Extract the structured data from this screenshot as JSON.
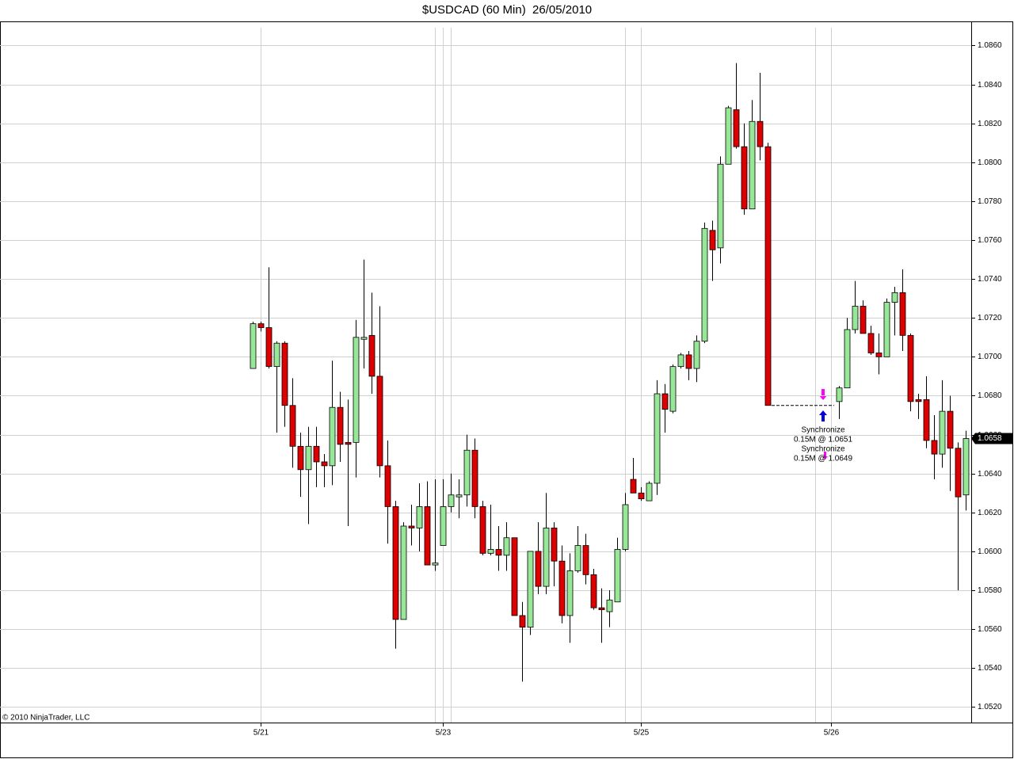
{
  "chart_data": {
    "type": "candlestick",
    "title": "$USDCAD (60 Min)  26/05/2010",
    "copyright": "© 2010 NinjaTrader, LLC",
    "categories": [
      null,
      "5/21",
      null,
      null,
      null,
      null,
      null,
      null,
      null,
      null,
      null,
      null,
      null,
      null,
      null,
      null,
      null,
      null,
      null,
      null,
      null,
      null,
      null,
      null,
      "5/23",
      null,
      null,
      null,
      null,
      null,
      null,
      null,
      null,
      null,
      null,
      null,
      null,
      null,
      null,
      null,
      null,
      null,
      null,
      null,
      null,
      null,
      null,
      null,
      null,
      "5/25",
      null,
      null,
      null,
      null,
      null,
      null,
      null,
      null,
      null,
      null,
      null,
      null,
      null,
      null,
      null,
      null,
      null,
      null,
      null,
      null,
      null,
      null,
      null,
      "5/26",
      null,
      null,
      null,
      null,
      null,
      null,
      null,
      null,
      null,
      null,
      null,
      null,
      null,
      null,
      null,
      null,
      null
    ],
    "open": [
      1.0694,
      1.0717,
      1.0715,
      1.0695,
      1.0707,
      1.0675,
      1.0654,
      1.0642,
      1.0654,
      1.0646,
      1.0644,
      1.0674,
      1.0656,
      1.0656,
      1.0709,
      1.0711,
      1.069,
      1.0644,
      1.0623,
      1.0565,
      1.0613,
      1.0612,
      1.0623,
      1.0593,
      1.0603,
      1.0623,
      1.0628,
      1.0629,
      1.0652,
      1.0623,
      1.0599,
      1.0601,
      1.0598,
      1.0607,
      1.0567,
      1.0561,
      1.06,
      1.0582,
      1.0612,
      1.0595,
      1.0567,
      1.059,
      1.0603,
      1.0588,
      1.0571,
      1.0569,
      1.0574,
      1.0601,
      1.0637,
      1.063,
      1.0626,
      1.0635,
      1.0681,
      1.0672,
      1.0695,
      1.0701,
      1.0694,
      1.0708,
      1.0765,
      1.0756,
      1.0799,
      1.0827,
      1.0808,
      1.0776,
      1.0821,
      1.0808,
      null,
      null,
      null,
      null,
      null,
      null,
      null,
      null,
      1.0677,
      1.0684,
      1.0714,
      1.0726,
      1.0712,
      1.0702,
      1.07,
      1.0728,
      1.0733,
      1.0711,
      1.0678,
      1.0678,
      1.0657,
      1.065,
      1.0672,
      1.0653,
      1.0629
    ],
    "high": [
      1.0718,
      1.0718,
      1.0746,
      1.0708,
      1.0708,
      1.0689,
      1.0661,
      1.0664,
      1.0664,
      1.065,
      1.0698,
      1.0682,
      1.0678,
      1.0719,
      1.075,
      1.0733,
      1.0726,
      1.0657,
      1.0626,
      1.0615,
      1.0624,
      1.0635,
      1.0636,
      1.0637,
      1.0637,
      1.064,
      1.0637,
      1.066,
      1.0658,
      1.0626,
      1.0624,
      1.0613,
      1.0615,
      1.0607,
      1.0574,
      1.06,
      1.0615,
      1.063,
      1.0615,
      1.0603,
      1.0599,
      1.0613,
      1.0609,
      1.0591,
      1.0581,
      1.058,
      1.0607,
      1.063,
      1.0648,
      1.0633,
      1.0636,
      1.0688,
      1.0686,
      1.0696,
      1.0702,
      1.0703,
      1.0711,
      1.0769,
      1.077,
      1.0803,
      1.0829,
      1.0851,
      1.082,
      1.0832,
      1.0846,
      1.081,
      null,
      null,
      null,
      null,
      null,
      null,
      null,
      null,
      1.0685,
      1.072,
      1.0739,
      1.0729,
      1.0716,
      1.0712,
      1.073,
      1.0736,
      1.0745,
      1.0712,
      1.0681,
      1.069,
      1.067,
      1.0688,
      1.068,
      1.0656,
      1.0662
    ],
    "low": [
      1.0694,
      1.0713,
      1.0694,
      1.0661,
      1.0664,
      1.0643,
      1.0628,
      1.0614,
      1.0633,
      1.0633,
      1.0634,
      1.0646,
      1.0613,
      1.0638,
      1.0694,
      1.0681,
      1.0638,
      1.0604,
      1.055,
      1.0565,
      1.0603,
      1.06,
      1.0593,
      1.059,
      1.0603,
      1.062,
      1.0617,
      1.0623,
      1.0617,
      1.0598,
      1.0598,
      1.059,
      1.059,
      1.0567,
      1.0533,
      1.0557,
      1.0578,
      1.0578,
      1.0582,
      1.0563,
      1.0553,
      1.0589,
      1.0583,
      1.057,
      1.0553,
      1.0561,
      1.0574,
      1.06,
      1.063,
      1.0626,
      1.0626,
      1.0629,
      1.0661,
      1.0671,
      1.0694,
      1.0688,
      1.0687,
      1.0707,
      1.0739,
      1.0748,
      1.0799,
      1.0807,
      1.0773,
      1.0776,
      1.0801,
      1.0675,
      null,
      null,
      null,
      null,
      null,
      null,
      null,
      null,
      1.0668,
      1.0684,
      1.0712,
      1.0712,
      1.0701,
      1.0691,
      1.07,
      1.0711,
      1.0703,
      1.0672,
      1.0668,
      1.0653,
      1.0637,
      1.0643,
      1.0631,
      1.058,
      1.0621
    ],
    "close": [
      1.0717,
      1.0715,
      1.0695,
      1.0707,
      1.0675,
      1.0654,
      1.0642,
      1.0654,
      1.0646,
      1.0644,
      1.0674,
      1.0655,
      1.0655,
      1.071,
      1.071,
      1.069,
      1.0644,
      1.0623,
      1.0565,
      1.0613,
      1.0612,
      1.0623,
      1.0593,
      1.0594,
      1.0623,
      1.0629,
      1.0629,
      1.0652,
      1.0623,
      1.0599,
      1.0601,
      1.0598,
      1.0607,
      1.0567,
      1.0561,
      1.06,
      1.0582,
      1.0612,
      1.0595,
      1.0567,
      1.059,
      1.0603,
      1.0588,
      1.0571,
      1.057,
      1.0575,
      1.0601,
      1.0624,
      1.063,
      1.0627,
      1.0635,
      1.0681,
      1.0673,
      1.0695,
      1.0701,
      1.0694,
      1.0708,
      1.0766,
      1.0755,
      1.0799,
      1.0828,
      1.0808,
      1.0776,
      1.0821,
      1.0808,
      1.0675,
      null,
      null,
      null,
      null,
      null,
      null,
      null,
      null,
      1.0684,
      1.0714,
      1.0726,
      1.0712,
      1.0702,
      1.07,
      1.0728,
      1.0733,
      1.0711,
      1.0677,
      1.0677,
      1.0657,
      1.065,
      1.0672,
      1.0653,
      1.0628,
      1.0658
    ],
    "up_color": "#98e698",
    "down_color": "#dd0000",
    "ylim": [
      1.0512,
      1.0872
    ],
    "yticks": [
      {
        "value": 1.052,
        "label": "1.0520"
      },
      {
        "value": 1.054,
        "label": "1.0540"
      },
      {
        "value": 1.056,
        "label": "1.0560"
      },
      {
        "value": 1.058,
        "label": "1.0580"
      },
      {
        "value": 1.06,
        "label": "1.0600"
      },
      {
        "value": 1.062,
        "label": "1.0620"
      },
      {
        "value": 1.064,
        "label": "1.0640"
      },
      {
        "value": 1.066,
        "label": "1.0660"
      },
      {
        "value": 1.068,
        "label": "1.0680"
      },
      {
        "value": 1.07,
        "label": "1.0700"
      },
      {
        "value": 1.072,
        "label": "1.0720"
      },
      {
        "value": 1.074,
        "label": "1.0740"
      },
      {
        "value": 1.076,
        "label": "1.0760"
      },
      {
        "value": 1.078,
        "label": "1.0780"
      },
      {
        "value": 1.08,
        "label": "1.0800"
      },
      {
        "value": 1.082,
        "label": "1.0820"
      },
      {
        "value": 1.084,
        "label": "1.0840"
      },
      {
        "value": 1.086,
        "label": "1.0860"
      }
    ],
    "last_price": 1.0658,
    "grid": true,
    "annotations": [
      "Synchronize",
      "0.15M @ 1.0651",
      "Synchronize",
      "0.15M @ 1.0649"
    ]
  }
}
